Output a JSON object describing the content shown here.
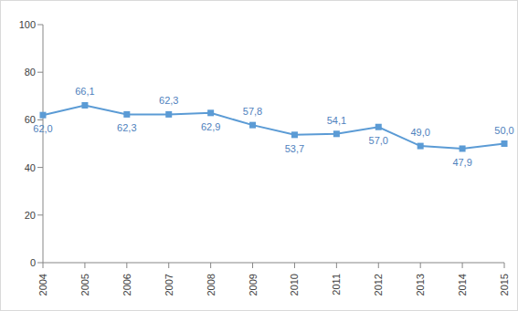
{
  "chart_data": {
    "type": "line",
    "categories": [
      "2004",
      "2005",
      "2006",
      "2007",
      "2008",
      "2009",
      "2010",
      "2011",
      "2012",
      "2013",
      "2014",
      "2015"
    ],
    "values": [
      62.0,
      66.1,
      62.3,
      62.3,
      62.9,
      57.8,
      53.7,
      54.1,
      57.0,
      49.0,
      47.9,
      50.0
    ],
    "value_labels": [
      "62,0",
      "66,1",
      "62,3",
      "62,3",
      "62,9",
      "57,8",
      "53,7",
      "54,1",
      "57,0",
      "49,0",
      "47,9",
      "50,0"
    ],
    "color": "#5b9bd5",
    "marker": "square",
    "ylim": [
      0,
      100
    ],
    "yticks": [
      0,
      20,
      40,
      60,
      80,
      100
    ],
    "grid": false,
    "data_labels": true
  }
}
